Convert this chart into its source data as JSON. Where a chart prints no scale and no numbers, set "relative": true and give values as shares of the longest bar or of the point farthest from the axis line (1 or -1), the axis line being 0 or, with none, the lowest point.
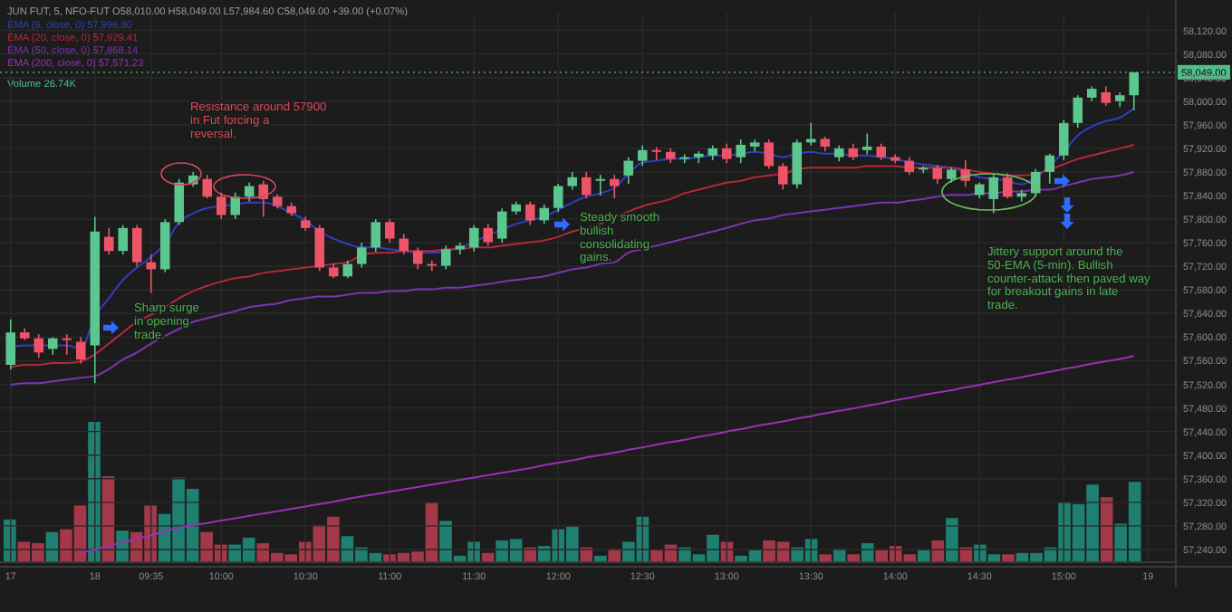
{
  "chart_data": [
    {
      "type": "candlestick",
      "title": "JUN FUT, 5, NFO-FUT O58,010.00 H58,049.00 L57,984.60 C58,049.00 +39.00 (+0.07%)",
      "categories": [
        "17",
        null,
        null,
        null,
        null,
        null,
        "18",
        null,
        null,
        null,
        "09:35",
        null,
        null,
        null,
        null,
        "10:00",
        null,
        null,
        null,
        null,
        null,
        "10:30",
        null,
        null,
        null,
        null,
        null,
        "11:00",
        null,
        null,
        null,
        null,
        null,
        "11:30",
        null,
        null,
        null,
        null,
        null,
        "12:00",
        null,
        null,
        null,
        null,
        null,
        "12:30",
        null,
        null,
        null,
        null,
        null,
        "13:00",
        null,
        null,
        null,
        null,
        null,
        "13:30",
        null,
        null,
        null,
        null,
        null,
        "14:00",
        null,
        null,
        null,
        null,
        null,
        "14:30",
        null,
        null,
        null,
        null,
        null,
        "15:00",
        null,
        null,
        null,
        null,
        null,
        "19"
      ],
      "ohlc": [
        [
          57553,
          57630,
          57545,
          57608
        ],
        [
          57608,
          57615,
          57595,
          57598
        ],
        [
          57598,
          57605,
          57565,
          57574
        ],
        [
          57580,
          57600,
          57570,
          57598
        ],
        [
          57598,
          57605,
          57570,
          57595
        ],
        [
          57592,
          57600,
          57555,
          57562
        ],
        [
          57586,
          57804,
          57522,
          57779
        ],
        [
          57770,
          57785,
          57740,
          57746
        ],
        [
          57746,
          57790,
          57740,
          57785
        ],
        [
          57785,
          57790,
          57720,
          57727
        ],
        [
          57727,
          57740,
          57675,
          57715
        ],
        [
          57715,
          57800,
          57710,
          57795
        ],
        [
          57795,
          57868,
          57790,
          57862
        ],
        [
          57859,
          57880,
          57855,
          57874
        ],
        [
          57868,
          57875,
          57835,
          57838
        ],
        [
          57838,
          57845,
          57800,
          57807
        ],
        [
          57807,
          57845,
          57800,
          57838
        ],
        [
          57838,
          57862,
          57830,
          57856
        ],
        [
          57859,
          57865,
          57804,
          57834
        ],
        [
          57838,
          57842,
          57818,
          57822
        ],
        [
          57822,
          57828,
          57805,
          57810
        ],
        [
          57798,
          57804,
          57780,
          57785
        ],
        [
          57785,
          57790,
          57712,
          57718
        ],
        [
          57718,
          57725,
          57700,
          57703
        ],
        [
          57703,
          57730,
          57700,
          57724
        ],
        [
          57724,
          57760,
          57718,
          57752
        ],
        [
          57752,
          57800,
          57745,
          57795
        ],
        [
          57795,
          57800,
          57760,
          57767
        ],
        [
          57767,
          57775,
          57740,
          57746
        ],
        [
          57746,
          57752,
          57715,
          57724
        ],
        [
          57724,
          57730,
          57712,
          57721
        ],
        [
          57721,
          57755,
          57715,
          57749
        ],
        [
          57749,
          57760,
          57740,
          57755
        ],
        [
          57752,
          57790,
          57745,
          57785
        ],
        [
          57785,
          57792,
          57755,
          57761
        ],
        [
          57767,
          57818,
          57760,
          57813
        ],
        [
          57813,
          57830,
          57808,
          57825
        ],
        [
          57825,
          57830,
          57790,
          57798
        ],
        [
          57798,
          57825,
          57792,
          57819
        ],
        [
          57819,
          57860,
          57812,
          57856
        ],
        [
          57856,
          57880,
          57850,
          57871
        ],
        [
          57871,
          57880,
          57835,
          57841
        ],
        [
          57865,
          57875,
          57840,
          57868
        ],
        [
          57868,
          57875,
          57835,
          57856
        ],
        [
          57874,
          57905,
          57860,
          57899
        ],
        [
          57899,
          57925,
          57890,
          57917
        ],
        [
          57917,
          57922,
          57900,
          57914
        ],
        [
          57914,
          57920,
          57895,
          57902
        ],
        [
          57902,
          57910,
          57895,
          57905
        ],
        [
          57905,
          57915,
          57895,
          57911
        ],
        [
          57908,
          57925,
          57900,
          57920
        ],
        [
          57920,
          57928,
          57895,
          57902
        ],
        [
          57905,
          57935,
          57895,
          57926
        ],
        [
          57923,
          57935,
          57915,
          57930
        ],
        [
          57930,
          57935,
          57885,
          57890
        ],
        [
          57890,
          57895,
          57850,
          57859
        ],
        [
          57859,
          57935,
          57852,
          57930
        ],
        [
          57930,
          57963,
          57925,
          57936
        ],
        [
          57936,
          57940,
          57915,
          57923
        ],
        [
          57905,
          57925,
          57898,
          57920
        ],
        [
          57920,
          57928,
          57900,
          57905
        ],
        [
          57917,
          57945,
          57910,
          57923
        ],
        [
          57923,
          57928,
          57900,
          57905
        ],
        [
          57905,
          57910,
          57895,
          57899
        ],
        [
          57899,
          57905,
          57875,
          57880
        ],
        [
          57884,
          57890,
          57878,
          57887
        ],
        [
          57887,
          57892,
          57860,
          57868
        ],
        [
          57868,
          57888,
          57862,
          57884
        ],
        [
          57884,
          57900,
          57855,
          57865
        ],
        [
          57841,
          57862,
          57835,
          57859
        ],
        [
          57834,
          57875,
          57810,
          57871
        ],
        [
          57871,
          57878,
          57835,
          57838
        ],
        [
          57838,
          57850,
          57830,
          57844
        ],
        [
          57844,
          57885,
          57838,
          57880
        ],
        [
          57880,
          57911,
          57860,
          57908
        ],
        [
          57908,
          57968,
          57900,
          57963
        ],
        [
          57963,
          58010,
          57955,
          58006
        ],
        [
          58006,
          58025,
          58000,
          58021
        ],
        [
          58015,
          58025,
          57992,
          57997
        ],
        [
          58000,
          58015,
          57990,
          58010
        ],
        [
          58010,
          58049,
          57984.6,
          58049
        ],
        null
      ],
      "series": [
        {
          "type": "line",
          "name": "EMA (9, close, 0) 57,996.80",
          "color": "#2f3fc0",
          "values": [
            57583,
            57586,
            57586,
            57586,
            57586,
            57580,
            57635,
            57666,
            57697,
            57718,
            57736,
            57758,
            57795,
            57810,
            57819,
            57822,
            57825,
            57828,
            57828,
            57822,
            57810,
            57798,
            57779,
            57767,
            57758,
            57752,
            57752,
            57749,
            57746,
            57743,
            57743,
            57746,
            57752,
            57761,
            57773,
            57782,
            57792,
            57798,
            57804,
            57816,
            57828,
            57838,
            57844,
            57853,
            57877,
            57896,
            57899,
            57902,
            57902,
            57905,
            57908,
            57908,
            57911,
            57914,
            57911,
            57905,
            57911,
            57914,
            57911,
            57911,
            57908,
            57908,
            57905,
            57902,
            57896,
            57893,
            57890,
            57887,
            57880,
            57871,
            57868,
            57865,
            57859,
            57871,
            57890,
            57914,
            57942,
            57957,
            57966,
            57972,
            57988,
            null
          ]
        },
        {
          "type": "line",
          "name": "EMA (20, close, 0) 57,929.41",
          "color": "#b3283a",
          "values": [
            57549,
            57553,
            57553,
            57556,
            57556,
            57559,
            57571,
            57589,
            57608,
            57626,
            57638,
            57651,
            57666,
            57678,
            57687,
            57694,
            57700,
            57703,
            57709,
            57712,
            57715,
            57718,
            57721,
            57724,
            57727,
            57739,
            57743,
            57743,
            57746,
            57746,
            57746,
            57749,
            57749,
            57752,
            57752,
            57755,
            57758,
            57761,
            57764,
            57770,
            57779,
            57785,
            57792,
            57804,
            57813,
            57822,
            57828,
            57834,
            57844,
            57850,
            57856,
            57862,
            57865,
            57871,
            57874,
            57877,
            57884,
            57887,
            57887,
            57887,
            57887,
            57890,
            57890,
            57890,
            57887,
            57887,
            57887,
            57887,
            57884,
            57880,
            57877,
            57874,
            57874,
            57877,
            57884,
            57893,
            57902,
            57908,
            57914,
            57920,
            57926,
            null
          ]
        },
        {
          "type": "line",
          "name": "EMA (50, close, 0) 57,868.14",
          "color": "#7b35b0",
          "values": [
            57519,
            57522,
            57522,
            57525,
            57528,
            57531,
            57534,
            57546,
            57562,
            57574,
            57589,
            57602,
            57614,
            57626,
            57632,
            57638,
            57644,
            57651,
            57654,
            57657,
            57663,
            57666,
            57669,
            57669,
            57672,
            57675,
            57675,
            57678,
            57678,
            57681,
            57681,
            57684,
            57684,
            57687,
            57690,
            57694,
            57697,
            57700,
            57703,
            57709,
            57715,
            57718,
            57724,
            57727,
            57743,
            57749,
            57755,
            57761,
            57767,
            57773,
            57779,
            57785,
            57792,
            57798,
            57801,
            57807,
            57810,
            57813,
            57816,
            57819,
            57822,
            57825,
            57828,
            57828,
            57831,
            57834,
            57838,
            57841,
            57841,
            57844,
            57844,
            57847,
            57847,
            57850,
            57850,
            57856,
            57862,
            57868,
            57871,
            57874,
            57880,
            null
          ]
        },
        {
          "type": "line",
          "name": "EMA (200, close, 0) 57,571.23",
          "color": "#9c2fb5",
          "values": [
            null,
            null,
            null,
            null,
            null,
            57234,
            57240,
            57246,
            57252,
            57258,
            57264,
            57271,
            57277,
            57281,
            57285,
            57289,
            57293,
            57297,
            57301,
            57305,
            57309,
            57313,
            57317,
            57321,
            57326,
            57330,
            57334,
            57338,
            57342,
            57346,
            57350,
            57354,
            57358,
            57362,
            57366,
            57370,
            57374,
            57378,
            57383,
            57387,
            57391,
            57396,
            57400,
            57404,
            57409,
            57413,
            57418,
            57422,
            57426,
            57431,
            57435,
            57440,
            57444,
            57449,
            57453,
            57457,
            57462,
            57466,
            57471,
            57475,
            57479,
            57484,
            57488,
            57493,
            57497,
            57502,
            57506,
            57510,
            57515,
            57519,
            57524,
            57528,
            57532,
            57537,
            57541,
            57546,
            57550,
            57555,
            57559,
            57563,
            57568,
            null
          ]
        }
      ],
      "ylim": [
        57220,
        58150
      ],
      "yticks": [
        {
          "value": 57240,
          "label": "57,240.00"
        },
        {
          "value": 57280,
          "label": "57,280.00"
        },
        {
          "value": 57320,
          "label": "57,320.00"
        },
        {
          "value": 57360,
          "label": "57,360.00"
        },
        {
          "value": 57400,
          "label": "57,400.00"
        },
        {
          "value": 57440,
          "label": "57,440.00"
        },
        {
          "value": 57480,
          "label": "57,480.00"
        },
        {
          "value": 57520,
          "label": "57,520.00"
        },
        {
          "value": 57560,
          "label": "57,560.00"
        },
        {
          "value": 57600,
          "label": "57,600.00"
        },
        {
          "value": 57640,
          "label": "57,640.00"
        },
        {
          "value": 57680,
          "label": "57,680.00"
        },
        {
          "value": 57720,
          "label": "57,720.00"
        },
        {
          "value": 57760,
          "label": "57,760.00"
        },
        {
          "value": 57800,
          "label": "57,800.00"
        },
        {
          "value": 57840,
          "label": "57,840.00"
        },
        {
          "value": 57880,
          "label": "57,880.00"
        },
        {
          "value": 57920,
          "label": "57,920.00"
        },
        {
          "value": 57960,
          "label": "57,960.00"
        },
        {
          "value": 58000,
          "label": "58,000.00"
        },
        {
          "value": 58040,
          "label": "58,040.00"
        },
        {
          "value": 58080,
          "label": "58,080.00"
        },
        {
          "value": 58120,
          "label": "58,120.00"
        }
      ],
      "grid": true,
      "legend": "top left",
      "ref_lines": [
        {
          "axis": "y",
          "value": 58049,
          "label": "58,049.00",
          "color": "#4fbf8a",
          "line_style": "dotted"
        }
      ],
      "annotations": [
        "Resistance around 57900 in Fut forcing a reversal.",
        "Sharp surge in opening trade.",
        "Steady smooth bullish consolidating gains.",
        "Jittery support around the 50-EMA (5-min). Bullish counter-attack then paved way for breakout gains in late trade."
      ]
    },
    {
      "type": "bar",
      "title": "Volume 26.74K",
      "relative": true,
      "categories": [
        null,
        null,
        null,
        null,
        null,
        null,
        null,
        null,
        null,
        null,
        null,
        null,
        null,
        null,
        null,
        null,
        null,
        null,
        null,
        null,
        null,
        null,
        null,
        null,
        null,
        null,
        null,
        null,
        null,
        null,
        null,
        null,
        null,
        null,
        null,
        null,
        null,
        null,
        null,
        null,
        null,
        null,
        null,
        null,
        null,
        null,
        null,
        null,
        null,
        null,
        null,
        null,
        null,
        null,
        null,
        null,
        null,
        null,
        null,
        null,
        null,
        null,
        null,
        null,
        null,
        null,
        null,
        null,
        null,
        null,
        null,
        null,
        null,
        null,
        null,
        null,
        null,
        null,
        null,
        null,
        null
      ],
      "values": [
        0.3,
        0.14,
        0.13,
        0.21,
        0.23,
        0.4,
        1,
        0.61,
        0.22,
        0.21,
        0.4,
        0.34,
        0.6,
        0.52,
        0.21,
        0.12,
        0.12,
        0.17,
        0.13,
        0.06,
        0.05,
        0.14,
        0.26,
        0.32,
        0.18,
        0.1,
        0.06,
        0.05,
        0.06,
        0.07,
        0.42,
        0.29,
        0.04,
        0.14,
        0.06,
        0.15,
        0.16,
        0.1,
        0.11,
        0.23,
        0.25,
        0.1,
        0.04,
        0.09,
        0.14,
        0.32,
        0.08,
        0.12,
        0.1,
        0.05,
        0.19,
        0.14,
        0.04,
        0.08,
        0.15,
        0.14,
        0.1,
        0.16,
        0.05,
        0.09,
        0.05,
        0.13,
        0.08,
        0.11,
        0.05,
        0.08,
        0.15,
        0.31,
        0.1,
        0.12,
        0.05,
        0.05,
        0.06,
        0.06,
        0.1,
        0.42,
        0.41,
        0.55,
        0.46,
        0.27,
        0.57
      ],
      "colors": [
        "#1f7f70",
        "#a33848",
        "#a33848",
        "#1f7f70",
        "#a33848",
        "#a33848",
        "#1f7f70",
        "#a33848",
        "#1f7f70",
        "#a33848",
        "#a33848",
        "#1f7f70",
        "#1f7f70",
        "#1f7f70",
        "#a33848",
        "#a33848",
        "#1f7f70",
        "#1f7f70",
        "#a33848",
        "#a33848",
        "#a33848",
        "#a33848",
        "#a33848",
        "#a33848",
        "#1f7f70",
        "#1f7f70",
        "#1f7f70",
        "#a33848",
        "#a33848",
        "#a33848",
        "#a33848",
        "#1f7f70",
        "#1f7f70",
        "#1f7f70",
        "#a33848",
        "#1f7f70",
        "#1f7f70",
        "#a33848",
        "#1f7f70",
        "#1f7f70",
        "#1f7f70",
        "#a33848",
        "#1f7f70",
        "#a33848",
        "#1f7f70",
        "#1f7f70",
        "#a33848",
        "#a33848",
        "#1f7f70",
        "#1f7f70",
        "#1f7f70",
        "#a33848",
        "#1f7f70",
        "#1f7f70",
        "#a33848",
        "#a33848",
        "#1f7f70",
        "#1f7f70",
        "#a33848",
        "#1f7f70",
        "#a33848",
        "#1f7f70",
        "#a33848",
        "#a33848",
        "#a33848",
        "#1f7f70",
        "#a33848",
        "#1f7f70",
        "#a33848",
        "#1f7f70",
        "#1f7f70",
        "#a33848",
        "#1f7f70",
        "#1f7f70",
        "#1f7f70",
        "#1f7f70",
        "#1f7f70",
        "#1f7f70",
        "#a33848",
        "#1f7f70",
        "#1f7f70"
      ]
    }
  ]
}
